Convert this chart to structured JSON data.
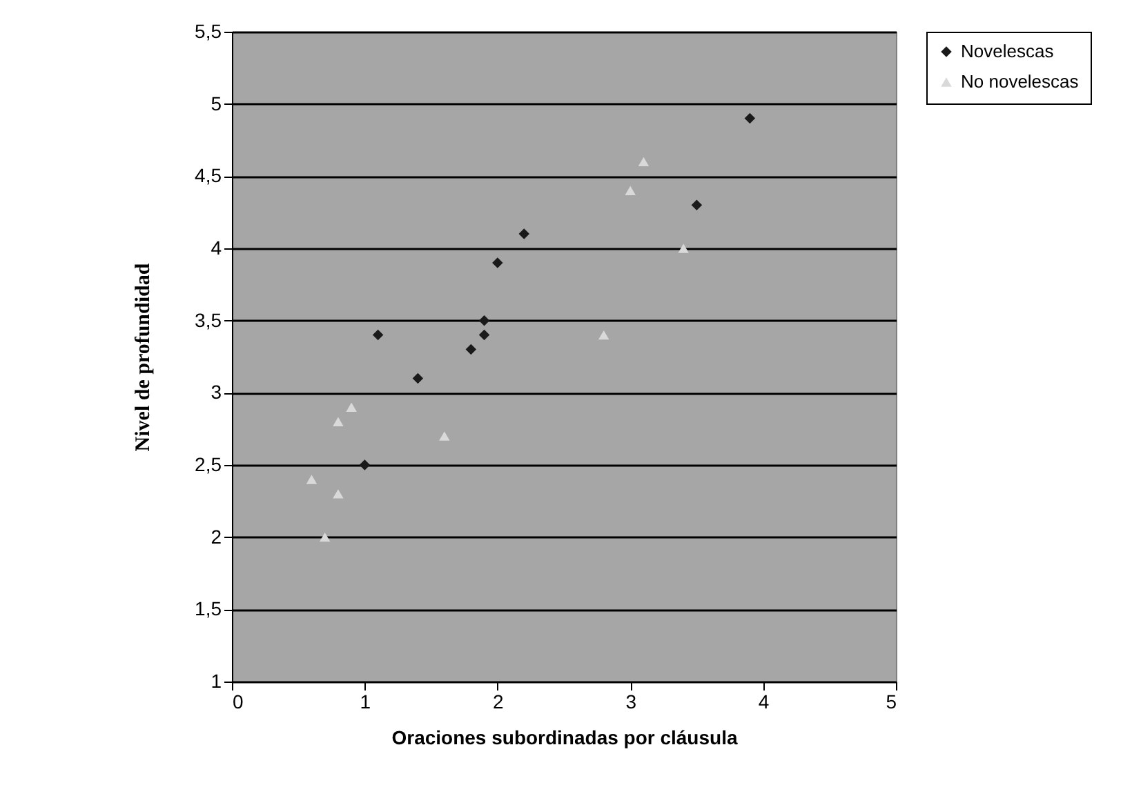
{
  "chart_data": {
    "type": "scatter",
    "xlabel": "Oraciones subordinadas por cláusula",
    "ylabel": "Nivel de profundidad",
    "xlim": [
      0,
      5
    ],
    "xticks": [
      0,
      1,
      2,
      3,
      4,
      5
    ],
    "ylim": [
      1,
      5.5
    ],
    "yticks": [
      1,
      {
        "value": 1.5,
        "label": "1,5"
      },
      2,
      {
        "value": 2.5,
        "label": "2,5"
      },
      3,
      {
        "value": 3.5,
        "label": "3,5"
      },
      4,
      {
        "value": 4.5,
        "label": "4,5"
      },
      5,
      {
        "value": 5.5,
        "label": "5,5"
      }
    ],
    "grid": "y",
    "legend": "right",
    "series": [
      {
        "name": "Novelescas",
        "color": "#1a1a1a",
        "marker": "diamond",
        "x": [
          1.0,
          1.1,
          1.4,
          1.8,
          1.9,
          1.9,
          2.0,
          2.2,
          3.5,
          3.9
        ],
        "values": [
          2.5,
          3.4,
          3.1,
          3.3,
          3.4,
          3.5,
          3.9,
          4.1,
          4.3,
          4.9
        ]
      },
      {
        "name": "No novelescas",
        "color": "#d9d9d9",
        "marker": "triangle",
        "x": [
          0.6,
          0.7,
          0.8,
          0.8,
          0.9,
          1.6,
          2.8,
          3.0,
          3.1,
          3.4
        ],
        "values": [
          2.4,
          2.0,
          2.3,
          2.8,
          2.9,
          2.7,
          3.4,
          4.4,
          4.6,
          4.0
        ]
      }
    ]
  }
}
